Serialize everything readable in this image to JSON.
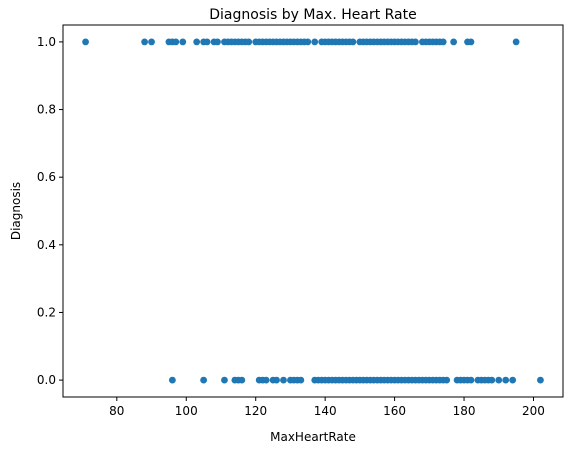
{
  "chart_data": {
    "type": "scatter",
    "title": "Diagnosis by Max. Heart Rate",
    "xlabel": "MaxHeartRate",
    "ylabel": "Diagnosis",
    "xlim": [
      64.5,
      208.5
    ],
    "ylim": [
      -0.05,
      1.05
    ],
    "xticks": [
      80,
      100,
      120,
      140,
      160,
      180,
      200
    ],
    "yticks": [
      0.0,
      0.2,
      0.4,
      0.6,
      0.8,
      1.0
    ],
    "xtick_labels": [
      "80",
      "100",
      "120",
      "140",
      "160",
      "180",
      "200"
    ],
    "ytick_labels": [
      "0.0",
      "0.2",
      "0.4",
      "0.6",
      "0.8",
      "1.0"
    ],
    "grid": false,
    "marker_color": "#1f77b4",
    "series": [
      {
        "points": [
          [
            71,
            1
          ],
          [
            88,
            1
          ],
          [
            90,
            1
          ],
          [
            95,
            1
          ],
          [
            96,
            1
          ],
          [
            97,
            1
          ],
          [
            99,
            1
          ],
          [
            103,
            1
          ],
          [
            105,
            1
          ],
          [
            106,
            1
          ],
          [
            108,
            1
          ],
          [
            109,
            1
          ],
          [
            111,
            1
          ],
          [
            112,
            1
          ],
          [
            113,
            1
          ],
          [
            114,
            1
          ],
          [
            115,
            1
          ],
          [
            116,
            1
          ],
          [
            117,
            1
          ],
          [
            118,
            1
          ],
          [
            120,
            1
          ],
          [
            121,
            1
          ],
          [
            122,
            1
          ],
          [
            123,
            1
          ],
          [
            124,
            1
          ],
          [
            125,
            1
          ],
          [
            126,
            1
          ],
          [
            127,
            1
          ],
          [
            128,
            1
          ],
          [
            129,
            1
          ],
          [
            130,
            1
          ],
          [
            131,
            1
          ],
          [
            132,
            1
          ],
          [
            133,
            1
          ],
          [
            134,
            1
          ],
          [
            135,
            1
          ],
          [
            137,
            1
          ],
          [
            139,
            1
          ],
          [
            140,
            1
          ],
          [
            141,
            1
          ],
          [
            142,
            1
          ],
          [
            143,
            1
          ],
          [
            144,
            1
          ],
          [
            145,
            1
          ],
          [
            146,
            1
          ],
          [
            147,
            1
          ],
          [
            148,
            1
          ],
          [
            150,
            1
          ],
          [
            151,
            1
          ],
          [
            152,
            1
          ],
          [
            153,
            1
          ],
          [
            154,
            1
          ],
          [
            155,
            1
          ],
          [
            156,
            1
          ],
          [
            157,
            1
          ],
          [
            158,
            1
          ],
          [
            159,
            1
          ],
          [
            160,
            1
          ],
          [
            161,
            1
          ],
          [
            162,
            1
          ],
          [
            163,
            1
          ],
          [
            164,
            1
          ],
          [
            165,
            1
          ],
          [
            166,
            1
          ],
          [
            168,
            1
          ],
          [
            169,
            1
          ],
          [
            170,
            1
          ],
          [
            171,
            1
          ],
          [
            172,
            1
          ],
          [
            173,
            1
          ],
          [
            174,
            1
          ],
          [
            177,
            1
          ],
          [
            181,
            1
          ],
          [
            182,
            1
          ],
          [
            195,
            1
          ],
          [
            96,
            0
          ],
          [
            105,
            0
          ],
          [
            111,
            0
          ],
          [
            114,
            0
          ],
          [
            115,
            0
          ],
          [
            116,
            0
          ],
          [
            121,
            0
          ],
          [
            122,
            0
          ],
          [
            123,
            0
          ],
          [
            125,
            0
          ],
          [
            126,
            0
          ],
          [
            128,
            0
          ],
          [
            130,
            0
          ],
          [
            131,
            0
          ],
          [
            132,
            0
          ],
          [
            133,
            0
          ],
          [
            137,
            0
          ],
          [
            138,
            0
          ],
          [
            139,
            0
          ],
          [
            140,
            0
          ],
          [
            141,
            0
          ],
          [
            142,
            0
          ],
          [
            143,
            0
          ],
          [
            144,
            0
          ],
          [
            145,
            0
          ],
          [
            146,
            0
          ],
          [
            147,
            0
          ],
          [
            148,
            0
          ],
          [
            149,
            0
          ],
          [
            150,
            0
          ],
          [
            151,
            0
          ],
          [
            152,
            0
          ],
          [
            153,
            0
          ],
          [
            154,
            0
          ],
          [
            155,
            0
          ],
          [
            156,
            0
          ],
          [
            157,
            0
          ],
          [
            158,
            0
          ],
          [
            159,
            0
          ],
          [
            160,
            0
          ],
          [
            161,
            0
          ],
          [
            162,
            0
          ],
          [
            163,
            0
          ],
          [
            164,
            0
          ],
          [
            165,
            0
          ],
          [
            166,
            0
          ],
          [
            167,
            0
          ],
          [
            168,
            0
          ],
          [
            169,
            0
          ],
          [
            170,
            0
          ],
          [
            171,
            0
          ],
          [
            172,
            0
          ],
          [
            173,
            0
          ],
          [
            174,
            0
          ],
          [
            175,
            0
          ],
          [
            178,
            0
          ],
          [
            179,
            0
          ],
          [
            180,
            0
          ],
          [
            181,
            0
          ],
          [
            182,
            0
          ],
          [
            184,
            0
          ],
          [
            185,
            0
          ],
          [
            186,
            0
          ],
          [
            187,
            0
          ],
          [
            188,
            0
          ],
          [
            190,
            0
          ],
          [
            192,
            0
          ],
          [
            194,
            0
          ],
          [
            202,
            0
          ]
        ]
      }
    ]
  }
}
